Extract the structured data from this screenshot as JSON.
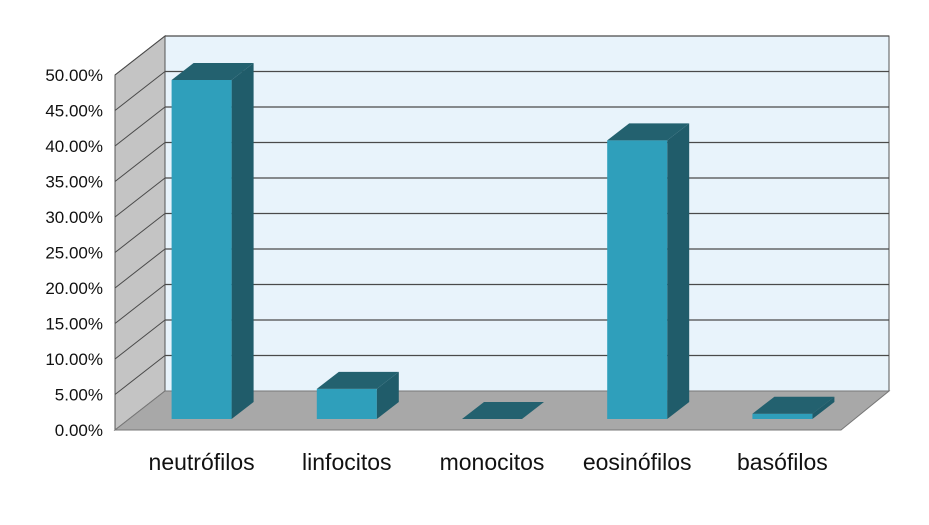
{
  "chart_data": {
    "type": "bar",
    "categories": [
      "neutrófilos",
      "linfocitos",
      "monocitos",
      "eosinófilos",
      "basófilos"
    ],
    "values": [
      50.0,
      6.5,
      0.0,
      41.5,
      3.0
    ],
    "ylim": [
      0,
      50
    ],
    "yticks": [
      "0.00%",
      "5.00%",
      "10.00%",
      "15.00%",
      "20.00%",
      "25.00%",
      "30.00%",
      "35.00%",
      "40.00%",
      "45.00%",
      "50.00%"
    ],
    "grid": true,
    "three_d": true,
    "colors": {
      "bar_front": "#2f9fbb",
      "bar_side": "#205c6a",
      "bar_top": "#23616f",
      "back_wall": "#e8f3fb",
      "side_wall": "#c4c4c4",
      "floor": "#a8a8a8",
      "gridline": "#4a4a4a"
    }
  }
}
